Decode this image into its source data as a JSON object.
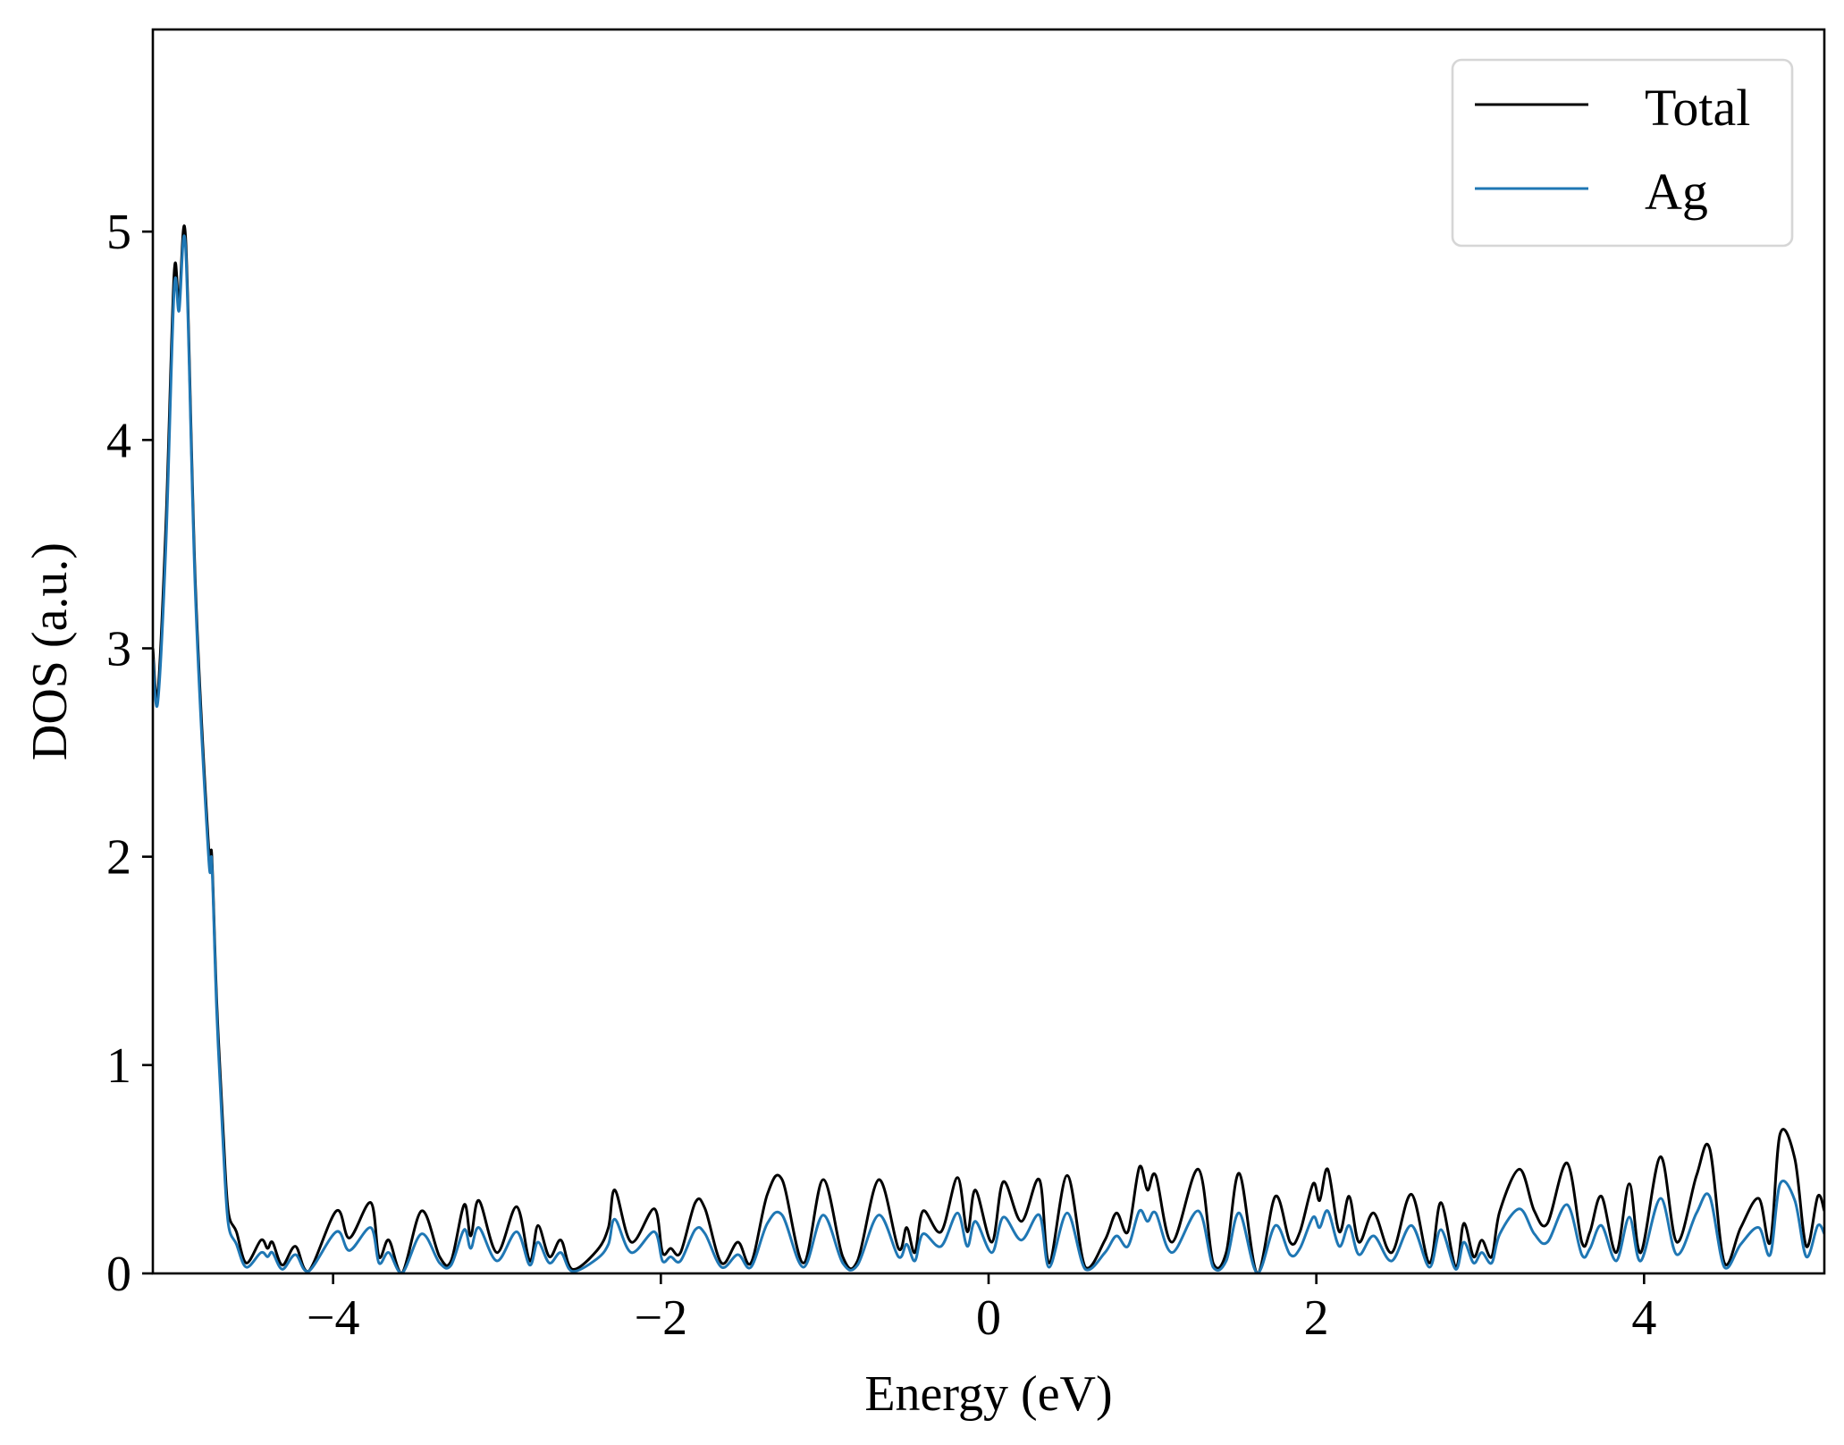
{
  "chart_data": {
    "type": "line",
    "title": "",
    "xlabel": "Energy (eV)",
    "ylabel": "DOS (a.u.)",
    "xlim": [
      -5.1,
      5.1
    ],
    "ylim": [
      0,
      5.97
    ],
    "xticks": [
      -4,
      -2,
      0,
      2,
      4
    ],
    "xtick_labels": [
      "−4",
      "−2",
      "0",
      "2",
      "4"
    ],
    "yticks": [
      0,
      1,
      2,
      3,
      4,
      5
    ],
    "ytick_labels": [
      "0",
      "1",
      "2",
      "3",
      "4",
      "5"
    ],
    "grid": false,
    "legend": {
      "placement": "top-right",
      "entries": [
        "Total",
        "Ag"
      ]
    },
    "series": [
      {
        "name": "Total",
        "color": "#000000"
      },
      {
        "name": "Ag",
        "color": "#1f77b4"
      }
    ],
    "points_x_total_ag": [
      [
        -5.1,
        3.0,
        2.95
      ],
      [
        -5.07,
        2.78,
        2.74
      ],
      [
        -5.02,
        3.6,
        3.5
      ],
      [
        -4.97,
        4.8,
        4.72
      ],
      [
        -4.94,
        4.66,
        4.62
      ],
      [
        -4.9,
        4.97,
        4.92
      ],
      [
        -4.84,
        3.3,
        3.25
      ],
      [
        -4.76,
        2.05,
        2.0
      ],
      [
        -4.74,
        2.0,
        1.97
      ],
      [
        -4.71,
        1.3,
        1.25
      ],
      [
        -4.67,
        0.67,
        0.6
      ],
      [
        -4.64,
        0.3,
        0.24
      ],
      [
        -4.59,
        0.2,
        0.14
      ],
      [
        -4.53,
        0.05,
        0.03
      ],
      [
        -4.44,
        0.16,
        0.1
      ],
      [
        -4.4,
        0.12,
        0.08
      ],
      [
        -4.37,
        0.15,
        0.1
      ],
      [
        -4.31,
        0.04,
        0.02
      ],
      [
        -4.23,
        0.13,
        0.09
      ],
      [
        -4.15,
        0.01,
        0.01
      ],
      [
        -3.98,
        0.3,
        0.2
      ],
      [
        -3.9,
        0.17,
        0.11
      ],
      [
        -3.77,
        0.34,
        0.22
      ],
      [
        -3.72,
        0.08,
        0.05
      ],
      [
        -3.66,
        0.16,
        0.1
      ],
      [
        -3.58,
        0.0,
        0.0
      ],
      [
        -3.46,
        0.3,
        0.19
      ],
      [
        -3.35,
        0.08,
        0.05
      ],
      [
        -3.28,
        0.06,
        0.04
      ],
      [
        -3.2,
        0.33,
        0.21
      ],
      [
        -3.16,
        0.18,
        0.12
      ],
      [
        -3.11,
        0.35,
        0.22
      ],
      [
        -3.0,
        0.1,
        0.06
      ],
      [
        -2.88,
        0.32,
        0.2
      ],
      [
        -2.8,
        0.06,
        0.04
      ],
      [
        -2.75,
        0.23,
        0.15
      ],
      [
        -2.68,
        0.08,
        0.05
      ],
      [
        -2.61,
        0.16,
        0.1
      ],
      [
        -2.54,
        0.02,
        0.01
      ],
      [
        -2.39,
        0.11,
        0.07
      ],
      [
        -2.32,
        0.22,
        0.14
      ],
      [
        -2.28,
        0.4,
        0.26
      ],
      [
        -2.18,
        0.15,
        0.1
      ],
      [
        -2.04,
        0.31,
        0.2
      ],
      [
        -1.99,
        0.1,
        0.06
      ],
      [
        -1.94,
        0.12,
        0.08
      ],
      [
        -1.88,
        0.1,
        0.06
      ],
      [
        -1.79,
        0.34,
        0.21
      ],
      [
        -1.73,
        0.31,
        0.19
      ],
      [
        -1.63,
        0.05,
        0.03
      ],
      [
        -1.53,
        0.15,
        0.09
      ],
      [
        -1.45,
        0.05,
        0.03
      ],
      [
        -1.35,
        0.38,
        0.24
      ],
      [
        -1.26,
        0.45,
        0.28
      ],
      [
        -1.13,
        0.05,
        0.03
      ],
      [
        -1.01,
        0.45,
        0.28
      ],
      [
        -0.89,
        0.08,
        0.05
      ],
      [
        -0.8,
        0.06,
        0.04
      ],
      [
        -0.67,
        0.45,
        0.28
      ],
      [
        -0.55,
        0.12,
        0.08
      ],
      [
        -0.5,
        0.22,
        0.14
      ],
      [
        -0.45,
        0.1,
        0.06
      ],
      [
        -0.4,
        0.3,
        0.19
      ],
      [
        -0.29,
        0.2,
        0.13
      ],
      [
        -0.19,
        0.46,
        0.29
      ],
      [
        -0.13,
        0.2,
        0.13
      ],
      [
        -0.08,
        0.4,
        0.25
      ],
      [
        0.02,
        0.15,
        0.1
      ],
      [
        0.09,
        0.44,
        0.27
      ],
      [
        0.2,
        0.25,
        0.16
      ],
      [
        0.31,
        0.45,
        0.28
      ],
      [
        0.37,
        0.05,
        0.03
      ],
      [
        0.48,
        0.47,
        0.29
      ],
      [
        0.59,
        0.03,
        0.02
      ],
      [
        0.71,
        0.16,
        0.1
      ],
      [
        0.78,
        0.29,
        0.18
      ],
      [
        0.85,
        0.2,
        0.13
      ],
      [
        0.92,
        0.51,
        0.3
      ],
      [
        0.97,
        0.4,
        0.25
      ],
      [
        1.02,
        0.47,
        0.29
      ],
      [
        1.12,
        0.15,
        0.1
      ],
      [
        1.28,
        0.5,
        0.3
      ],
      [
        1.37,
        0.05,
        0.03
      ],
      [
        1.45,
        0.1,
        0.06
      ],
      [
        1.53,
        0.48,
        0.29
      ],
      [
        1.64,
        0.0,
        0.0
      ],
      [
        1.75,
        0.37,
        0.23
      ],
      [
        1.84,
        0.15,
        0.09
      ],
      [
        1.9,
        0.2,
        0.12
      ],
      [
        1.98,
        0.43,
        0.27
      ],
      [
        2.02,
        0.35,
        0.22
      ],
      [
        2.07,
        0.5,
        0.3
      ],
      [
        2.14,
        0.2,
        0.13
      ],
      [
        2.2,
        0.37,
        0.23
      ],
      [
        2.26,
        0.15,
        0.09
      ],
      [
        2.35,
        0.29,
        0.18
      ],
      [
        2.46,
        0.1,
        0.06
      ],
      [
        2.58,
        0.38,
        0.23
      ],
      [
        2.69,
        0.05,
        0.03
      ],
      [
        2.76,
        0.34,
        0.21
      ],
      [
        2.85,
        0.03,
        0.02
      ],
      [
        2.9,
        0.24,
        0.15
      ],
      [
        2.96,
        0.08,
        0.05
      ],
      [
        3.01,
        0.16,
        0.1
      ],
      [
        3.07,
        0.08,
        0.05
      ],
      [
        3.12,
        0.3,
        0.19
      ],
      [
        3.24,
        0.5,
        0.31
      ],
      [
        3.33,
        0.3,
        0.19
      ],
      [
        3.41,
        0.24,
        0.15
      ],
      [
        3.53,
        0.53,
        0.33
      ],
      [
        3.62,
        0.15,
        0.09
      ],
      [
        3.67,
        0.2,
        0.12
      ],
      [
        3.74,
        0.37,
        0.23
      ],
      [
        3.83,
        0.1,
        0.06
      ],
      [
        3.91,
        0.43,
        0.27
      ],
      [
        3.98,
        0.1,
        0.06
      ],
      [
        4.1,
        0.56,
        0.36
      ],
      [
        4.2,
        0.15,
        0.09
      ],
      [
        4.32,
        0.47,
        0.29
      ],
      [
        4.4,
        0.6,
        0.37
      ],
      [
        4.49,
        0.05,
        0.03
      ],
      [
        4.59,
        0.22,
        0.14
      ],
      [
        4.7,
        0.36,
        0.22
      ],
      [
        4.77,
        0.15,
        0.09
      ],
      [
        4.83,
        0.67,
        0.43
      ],
      [
        4.92,
        0.55,
        0.35
      ],
      [
        4.99,
        0.13,
        0.08
      ],
      [
        5.06,
        0.37,
        0.23
      ],
      [
        5.1,
        0.3,
        0.19
      ]
    ]
  }
}
